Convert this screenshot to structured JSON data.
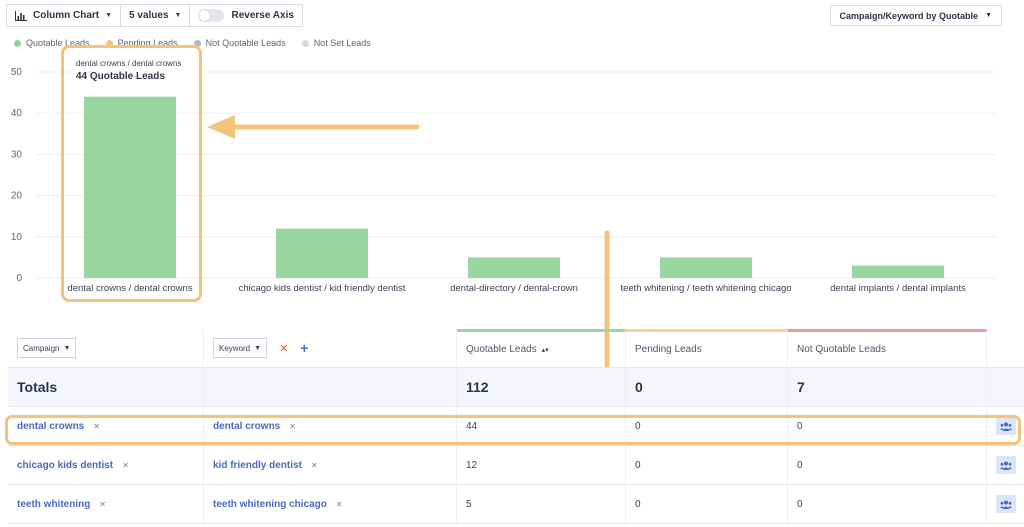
{
  "toolbar": {
    "chart_type": "Column Chart",
    "values_count": "5 values",
    "reverse_axis": "Reverse Axis",
    "group_by": "Campaign/Keyword by Quotable"
  },
  "legend": [
    {
      "label": "Quotable Leads",
      "color": "#8fd49b"
    },
    {
      "label": "Pending Leads",
      "color": "#f5c27c"
    },
    {
      "label": "Not Quotable Leads",
      "color": "#b3b8c4"
    },
    {
      "label": "Not Set Leads",
      "color": "#d6d9e0"
    }
  ],
  "tooltip": {
    "category": "dental crowns / dental crowns",
    "value_text": "44 Quotable Leads"
  },
  "chart_data": {
    "type": "bar",
    "categories": [
      "dental crowns / dental crowns",
      "chicago kids dentist / kid friendly dentist",
      "dental-directory / dental-crown",
      "teeth whitening / teeth whitening chicago",
      "dental implants / dental implants"
    ],
    "series": [
      {
        "name": "Quotable Leads",
        "values": [
          44,
          12,
          5,
          5,
          3
        ]
      }
    ],
    "yticks": [
      "0",
      "10",
      "20",
      "30",
      "40",
      "50"
    ],
    "ylim": [
      0,
      50
    ],
    "grid": true,
    "bar_color": "#99d69f"
  },
  "table": {
    "headers": {
      "campaign": "Campaign",
      "keyword": "Keyword",
      "quotable": "Quotable Leads",
      "pending": "Pending Leads",
      "not_quotable": "Not Quotable Leads"
    },
    "totals": {
      "label": "Totals",
      "quotable": "112",
      "pending": "0",
      "not_quotable": "7"
    },
    "rows": [
      {
        "campaign": "dental crowns",
        "keyword": "dental crowns",
        "quotable": "44",
        "pending": "0",
        "not_quotable": "0"
      },
      {
        "campaign": "chicago kids dentist",
        "keyword": "kid friendly dentist",
        "quotable": "12",
        "pending": "0",
        "not_quotable": "0"
      },
      {
        "campaign": "teeth whitening",
        "keyword": "teeth whitening chicago",
        "quotable": "5",
        "pending": "0",
        "not_quotable": "0"
      }
    ]
  },
  "annotation_color": "#f5c27c"
}
